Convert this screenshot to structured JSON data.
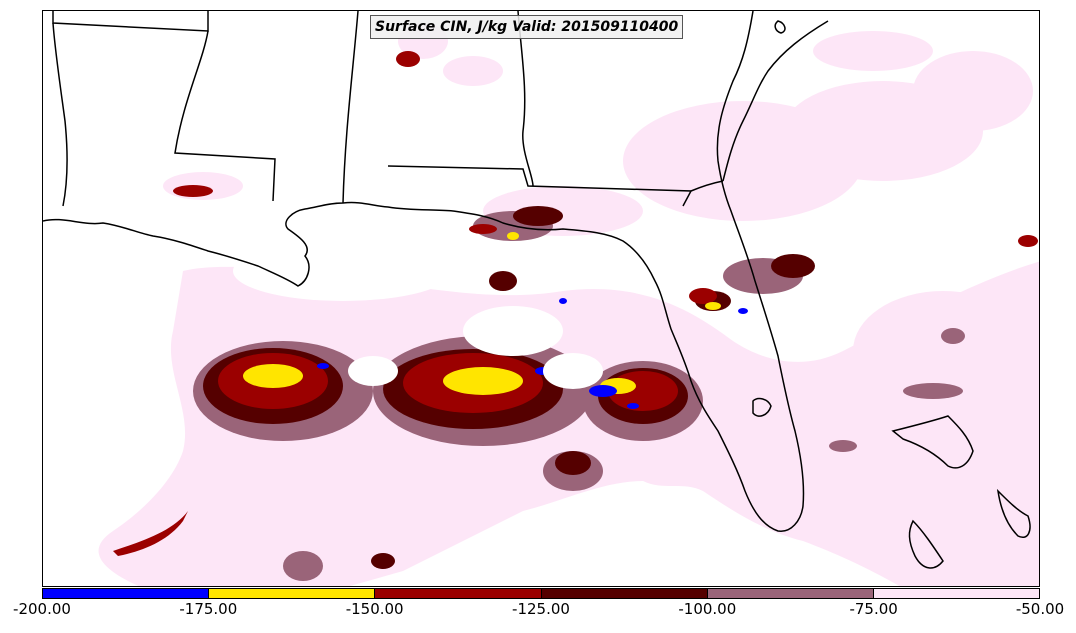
{
  "map": {
    "title": "Surface CIN, J/kg Valid: 201509110400",
    "legend": {
      "colors": [
        "#0000ff",
        "#ffe500",
        "#9b0000",
        "#550000",
        "#9a6479",
        "#fde6f7"
      ],
      "ticks": [
        "-200.00",
        "-175.00",
        "-150.00",
        "-125.00",
        "-100.00",
        "-75.00",
        "-50.00"
      ]
    },
    "colors": {
      "coast": "#000000",
      "background": "#ffffff"
    }
  }
}
